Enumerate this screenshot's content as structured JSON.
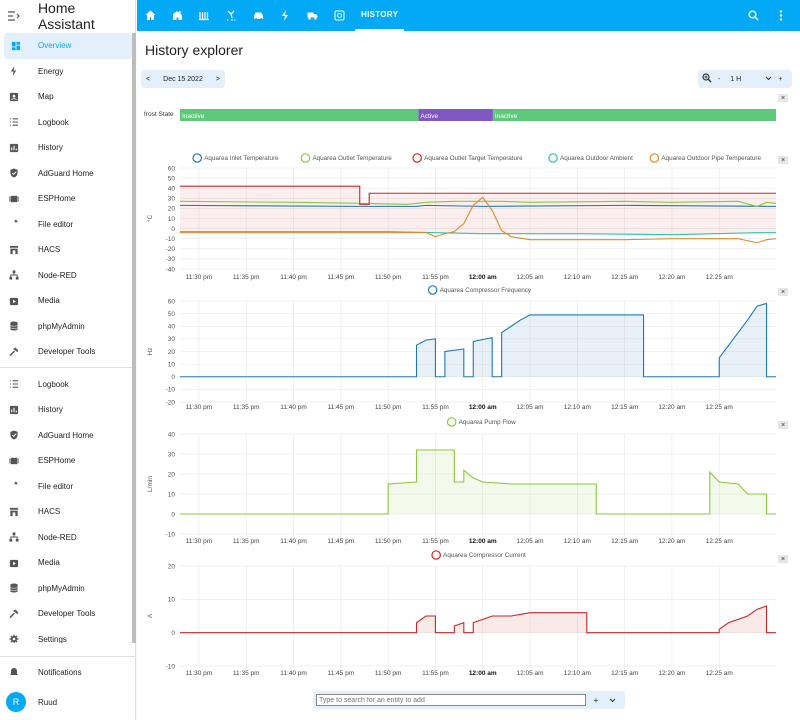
{
  "app": {
    "title": "Home Assistant"
  },
  "sidebar": {
    "items": [
      {
        "label": "Overview",
        "icon": "dashboard-icon",
        "active": true
      },
      {
        "label": "Energy",
        "icon": "lightning-icon"
      },
      {
        "label": "Map",
        "icon": "map-icon"
      },
      {
        "label": "Logbook",
        "icon": "logbook-icon"
      },
      {
        "label": "History",
        "icon": "history-chart-icon"
      },
      {
        "label": "AdGuard Home",
        "icon": "shield-icon"
      },
      {
        "label": "ESPHome",
        "icon": "chip-icon"
      },
      {
        "label": "File editor",
        "icon": "wrench-icon"
      },
      {
        "label": "HACS",
        "icon": "store-icon"
      },
      {
        "label": "Node-RED",
        "icon": "sitemap-icon"
      },
      {
        "label": "Media",
        "icon": "media-icon"
      },
      {
        "label": "phpMyAdmin",
        "icon": "database-icon"
      },
      {
        "label": "Developer Tools",
        "icon": "hammer-icon"
      }
    ],
    "items2": [
      {
        "label": "Logbook",
        "icon": "logbook-icon"
      },
      {
        "label": "History",
        "icon": "history-chart-icon"
      },
      {
        "label": "AdGuard Home",
        "icon": "shield-icon"
      },
      {
        "label": "ESPHome",
        "icon": "chip-icon"
      },
      {
        "label": "File editor",
        "icon": "wrench-icon"
      },
      {
        "label": "HACS",
        "icon": "store-icon"
      },
      {
        "label": "Node-RED",
        "icon": "sitemap-icon"
      },
      {
        "label": "Media",
        "icon": "media-icon"
      },
      {
        "label": "phpMyAdmin",
        "icon": "database-icon"
      },
      {
        "label": "Developer Tools",
        "icon": "hammer-icon"
      },
      {
        "label": "Settings",
        "icon": "gear-icon"
      }
    ],
    "notifications": "Notifications",
    "user": {
      "name": "Ruud",
      "initial": "R"
    }
  },
  "topbar": {
    "tab_label": "HISTORY",
    "icons": [
      "home-icon",
      "house-icon",
      "radiator-icon",
      "fan-icon",
      "car-icon",
      "lightning-icon",
      "truck-icon",
      "thermostat-icon"
    ],
    "accent": "#03a9f4"
  },
  "page": {
    "title": "History explorer",
    "date": "Dec 15 2022",
    "prev": "<",
    "next": ">",
    "zoom_value": "1 H",
    "zoom_minus": "-",
    "zoom_plus": "+"
  },
  "timeline": {
    "label": "frost State",
    "segments": [
      {
        "state": "Inactive",
        "start": 0.0,
        "end": 0.4,
        "color": "#5ec97a"
      },
      {
        "state": "Active",
        "start": 0.4,
        "end": 0.525,
        "color": "#7e57c2"
      },
      {
        "state": "Inactive",
        "start": 0.525,
        "end": 1.0,
        "color": "#5ec97a"
      }
    ]
  },
  "time_ticks": [
    "11:30 pm",
    "11:35 pm",
    "11:40 pm",
    "11:45 pm",
    "11:50 pm",
    "11:55 pm",
    "12:00 am",
    "12:05 am",
    "12:10 am",
    "12:15 am",
    "12:20 am",
    "12:25 am"
  ],
  "time_ticks_bold": "12:00 am",
  "time_range_min": [
    -32,
    31
  ],
  "chart_data": [
    {
      "type": "line",
      "ylabel": "°C",
      "ylim": [
        -40,
        60
      ],
      "yticks": [
        60,
        50,
        40,
        30,
        20,
        10,
        0,
        -10,
        -20,
        -30,
        -40
      ],
      "series": [
        {
          "name": "Aquarea Inlet Temperature",
          "color": "#1f77b4",
          "points": [
            [
              -32,
              23
            ],
            [
              -13,
              22
            ],
            [
              -7,
              22
            ],
            [
              -6,
              23
            ],
            [
              0,
              22
            ],
            [
              15,
              23
            ],
            [
              30,
              22
            ],
            [
              31,
              22
            ]
          ]
        },
        {
          "name": "Aquarea Outlet Temperature",
          "color": "#8cc63f",
          "points": [
            [
              -32,
              27
            ],
            [
              -20,
              26
            ],
            [
              -13,
              25
            ],
            [
              -8,
              24
            ],
            [
              -6,
              26
            ],
            [
              -3,
              27
            ],
            [
              2,
              27
            ],
            [
              5,
              26
            ],
            [
              15,
              27
            ],
            [
              20,
              26
            ],
            [
              27,
              27
            ],
            [
              29,
              22
            ],
            [
              30,
              26
            ],
            [
              31,
              25
            ]
          ]
        },
        {
          "name": "Aquarea Outlet Target Temperature",
          "color": "#c62828",
          "points": [
            [
              -32,
              42
            ],
            [
              -13,
              42
            ],
            [
              -13,
              24
            ],
            [
              -12,
              24
            ],
            [
              -12,
              35
            ],
            [
              31,
              35
            ]
          ]
        },
        {
          "name": "Aquarea Outdoor Ambient",
          "color": "#2ec4a5",
          "points": [
            [
              -32,
              -3
            ],
            [
              -20,
              -3
            ],
            [
              -10,
              -3
            ],
            [
              -5,
              -4
            ],
            [
              0,
              -5
            ],
            [
              10,
              -5
            ],
            [
              20,
              -6
            ],
            [
              29,
              -4
            ],
            [
              31,
              -4
            ]
          ]
        },
        {
          "name": "Aquarea Outdoor Pipe Temperature",
          "color": "#e08a2c",
          "points": [
            [
              -32,
              -4
            ],
            [
              -10,
              -4
            ],
            [
              -6,
              -4
            ],
            [
              -5,
              -8
            ],
            [
              -4,
              -5
            ],
            [
              -3,
              -3
            ],
            [
              -2,
              5
            ],
            [
              -1,
              23
            ],
            [
              0,
              31
            ],
            [
              1,
              18
            ],
            [
              2,
              -2
            ],
            [
              3,
              -8
            ],
            [
              5,
              -11
            ],
            [
              15,
              -11
            ],
            [
              20,
              -10
            ],
            [
              27,
              -10
            ],
            [
              29,
              -14
            ],
            [
              30,
              -11
            ],
            [
              31,
              -10
            ]
          ]
        }
      ],
      "fill_between": [
        "Aquarea Outlet Target Temperature",
        "Aquarea Outdoor Ambient"
      ]
    },
    {
      "type": "area",
      "ylabel": "Hz",
      "ylim": [
        -20,
        60
      ],
      "yticks": [
        60,
        50,
        40,
        30,
        20,
        10,
        0,
        -10,
        -20
      ],
      "series": [
        {
          "name": "Aquarea Compressor Frequency",
          "color": "#1f77b4",
          "points": [
            [
              -32,
              0
            ],
            [
              -7,
              0
            ],
            [
              -7,
              25
            ],
            [
              -6,
              29
            ],
            [
              -5,
              30
            ],
            [
              -5,
              0
            ],
            [
              -4,
              0
            ],
            [
              -4,
              20
            ],
            [
              -2,
              22
            ],
            [
              -2,
              0
            ],
            [
              -1,
              0
            ],
            [
              -1,
              28
            ],
            [
              1,
              31
            ],
            [
              1,
              0
            ],
            [
              2,
              0
            ],
            [
              2,
              35
            ],
            [
              3,
              40
            ],
            [
              4,
              45
            ],
            [
              5,
              49
            ],
            [
              14,
              49
            ],
            [
              17,
              49
            ],
            [
              17,
              0
            ],
            [
              25,
              0
            ],
            [
              25,
              15
            ],
            [
              26,
              25
            ],
            [
              27,
              35
            ],
            [
              28,
              45
            ],
            [
              29,
              56
            ],
            [
              30,
              58
            ],
            [
              30,
              0
            ],
            [
              31,
              0
            ]
          ]
        }
      ]
    },
    {
      "type": "area",
      "ylabel": "L/min",
      "ylim": [
        -10,
        40
      ],
      "yticks": [
        40,
        30,
        20,
        10,
        0,
        -10
      ],
      "series": [
        {
          "name": "Aquarea Pump Flow",
          "color": "#8cc63f",
          "points": [
            [
              -32,
              0
            ],
            [
              -10,
              0
            ],
            [
              -10,
              15
            ],
            [
              -7,
              16
            ],
            [
              -7,
              32
            ],
            [
              -5,
              32
            ],
            [
              -3,
              32
            ],
            [
              -3,
              16
            ],
            [
              -2,
              16
            ],
            [
              -2,
              22
            ],
            [
              -1,
              18
            ],
            [
              0,
              16
            ],
            [
              3,
              15
            ],
            [
              10,
              15
            ],
            [
              12,
              15
            ],
            [
              12,
              0
            ],
            [
              24,
              0
            ],
            [
              24,
              21
            ],
            [
              25,
              16
            ],
            [
              27,
              15
            ],
            [
              28,
              10
            ],
            [
              30,
              10
            ],
            [
              30,
              0
            ],
            [
              31,
              0
            ]
          ]
        }
      ]
    },
    {
      "type": "area",
      "ylabel": "A",
      "ylim": [
        -10,
        20
      ],
      "yticks": [
        20,
        10,
        0,
        -10
      ],
      "series": [
        {
          "name": "Aquarea Compressor Current",
          "color": "#c62828",
          "points": [
            [
              -32,
              0
            ],
            [
              -7,
              0
            ],
            [
              -7,
              3
            ],
            [
              -6,
              5
            ],
            [
              -5,
              5
            ],
            [
              -5,
              0
            ],
            [
              -3,
              0
            ],
            [
              -3,
              2
            ],
            [
              -2,
              3
            ],
            [
              -2,
              0
            ],
            [
              -1,
              0
            ],
            [
              -1,
              3
            ],
            [
              0,
              4
            ],
            [
              1,
              5
            ],
            [
              3,
              5
            ],
            [
              5,
              6
            ],
            [
              8,
              6
            ],
            [
              10,
              6
            ],
            [
              11,
              6
            ],
            [
              11,
              0
            ],
            [
              25,
              0
            ],
            [
              25,
              1
            ],
            [
              26,
              3
            ],
            [
              28,
              5
            ],
            [
              29,
              7
            ],
            [
              30,
              8
            ],
            [
              30,
              0
            ],
            [
              31,
              0
            ]
          ]
        }
      ]
    }
  ],
  "footer": {
    "search_placeholder": "Type to search for an entity to add",
    "add": "+",
    "expand": "⌄"
  },
  "close_label": "×"
}
